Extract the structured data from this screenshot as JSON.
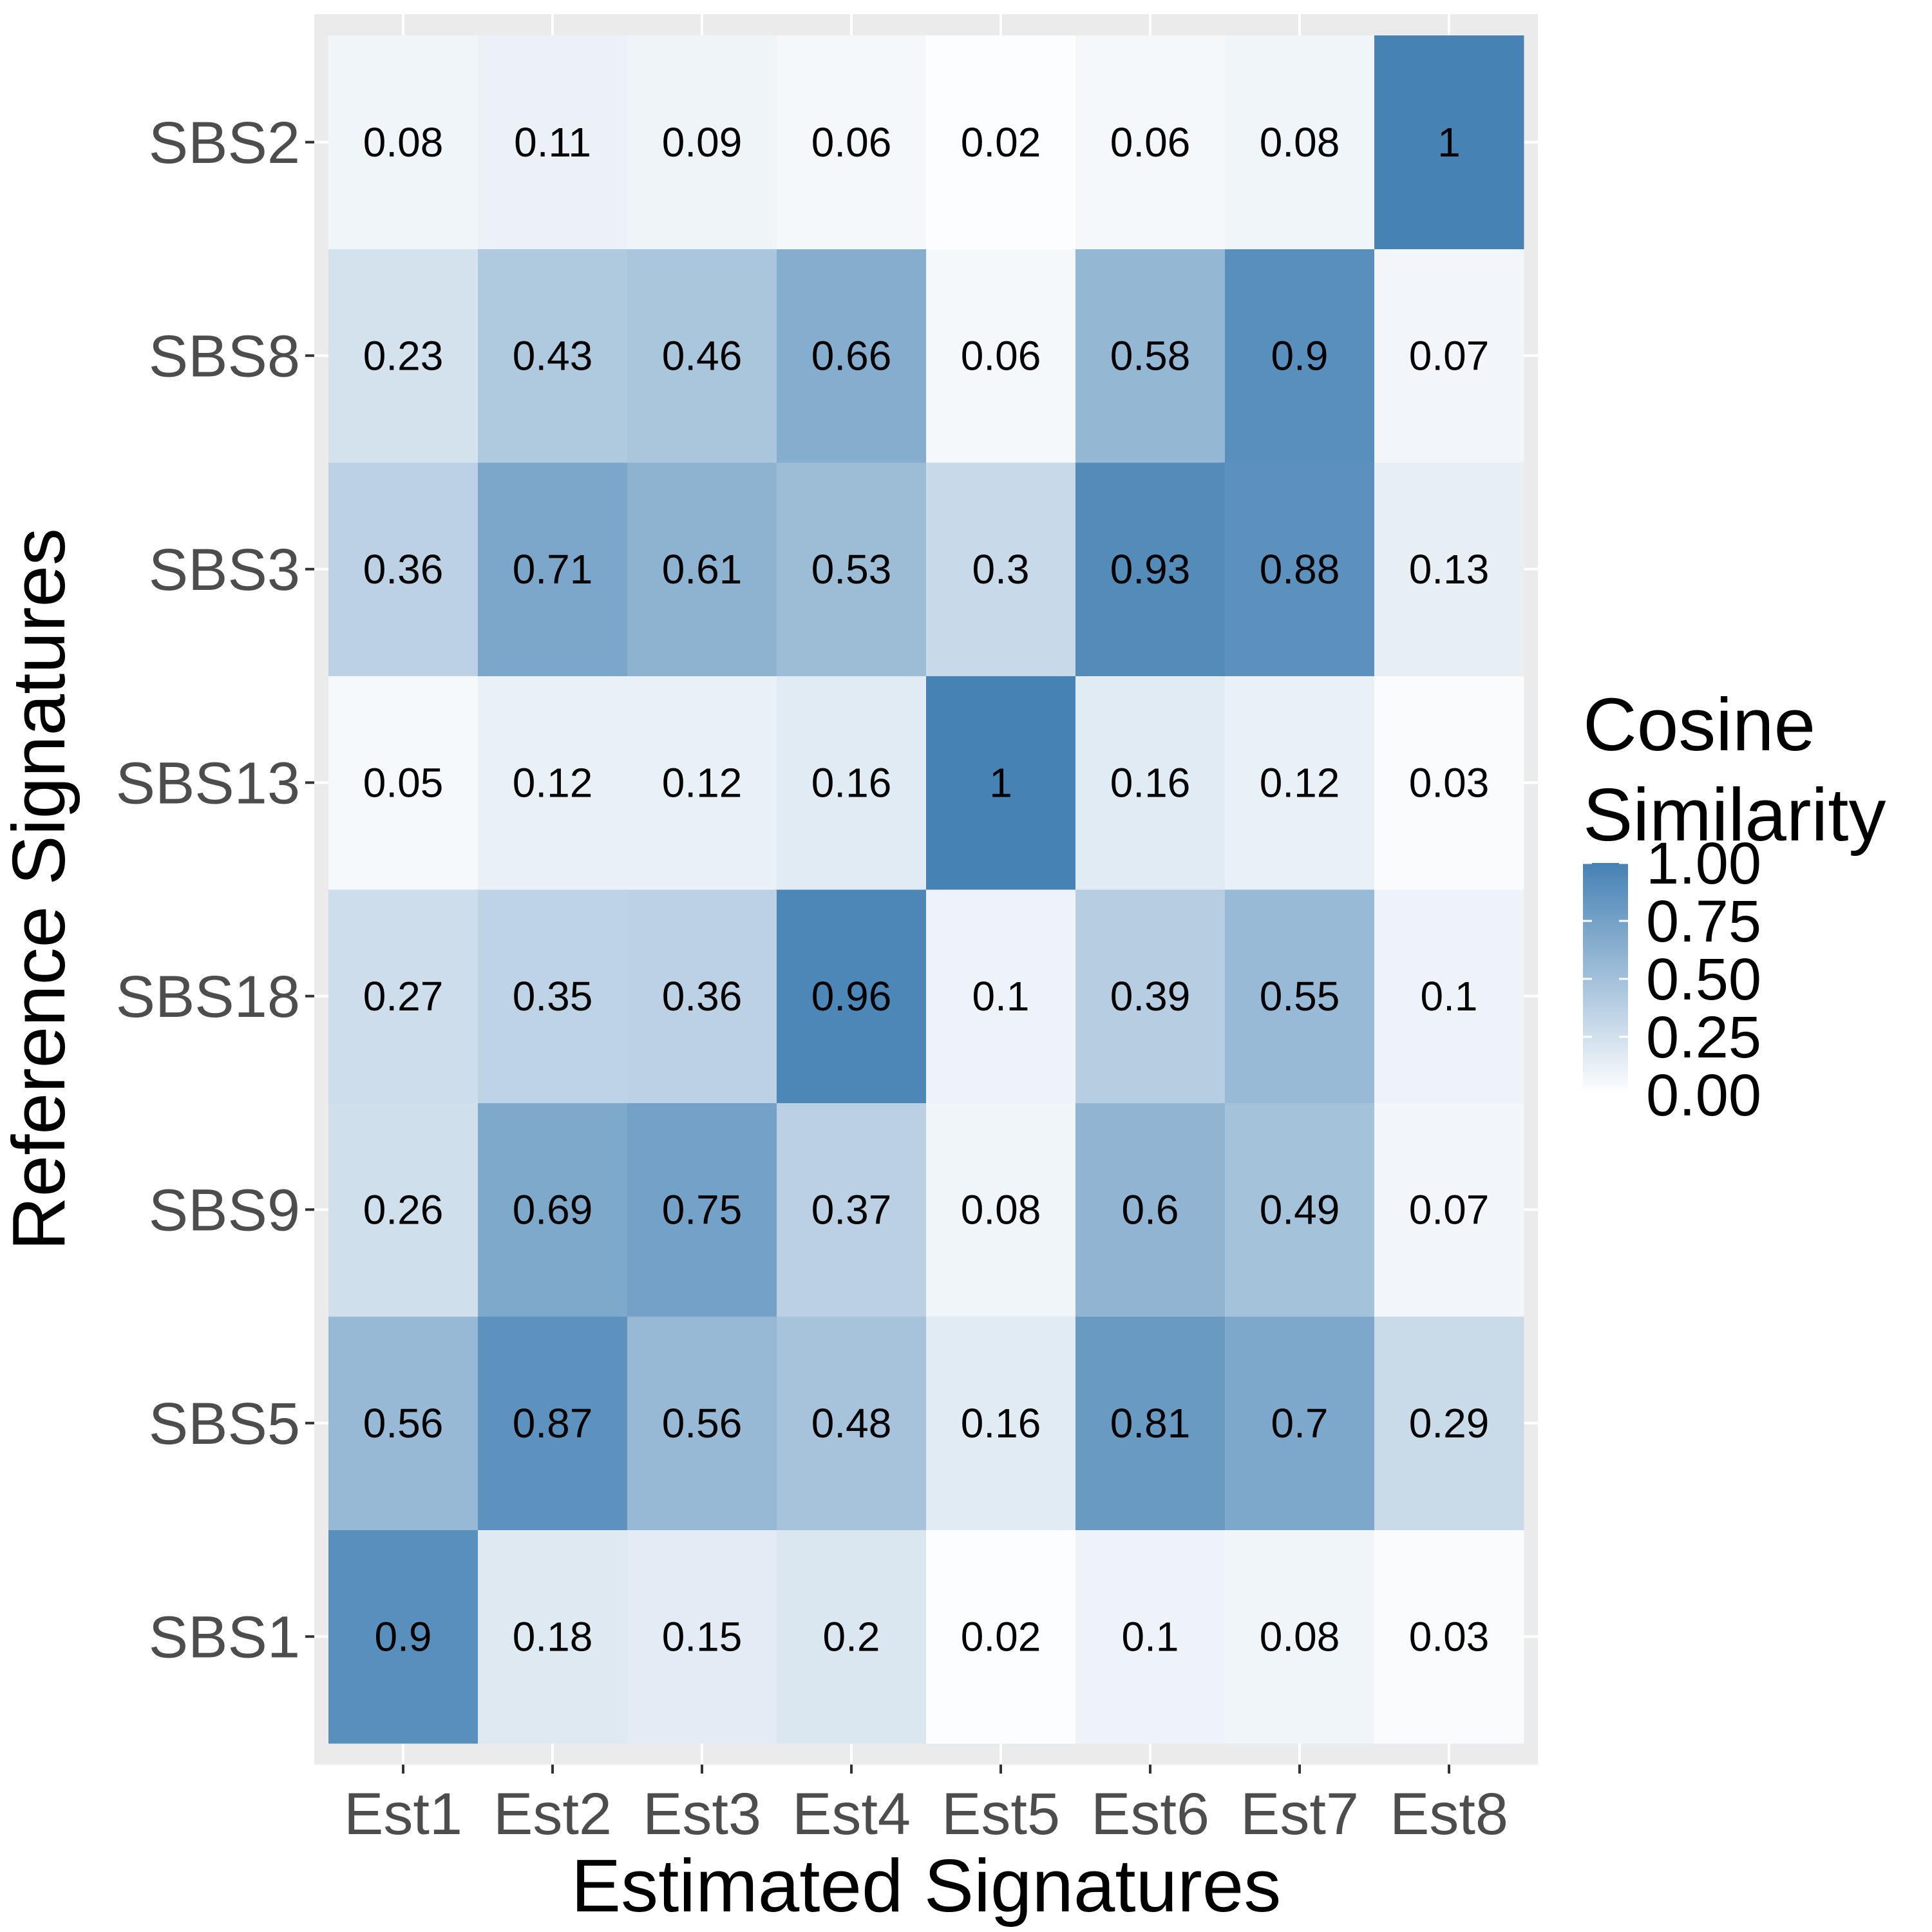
{
  "chart_data": {
    "type": "heatmap",
    "xlabel": "Estimated Signatures",
    "ylabel": "Reference Signatures",
    "x_categories": [
      "Est1",
      "Est2",
      "Est3",
      "Est4",
      "Est5",
      "Est6",
      "Est7",
      "Est8"
    ],
    "y_categories": [
      "SBS1",
      "SBS5",
      "SBS9",
      "SBS18",
      "SBS13",
      "SBS3",
      "SBS8",
      "SBS2"
    ],
    "values": {
      "SBS2": [
        0.08,
        0.11,
        0.09,
        0.06,
        0.02,
        0.06,
        0.08,
        1
      ],
      "SBS8": [
        0.23,
        0.43,
        0.46,
        0.66,
        0.06,
        0.58,
        0.9,
        0.07
      ],
      "SBS3": [
        0.36,
        0.71,
        0.61,
        0.53,
        0.3,
        0.93,
        0.88,
        0.13
      ],
      "SBS13": [
        0.05,
        0.12,
        0.12,
        0.16,
        1,
        0.16,
        0.12,
        0.03
      ],
      "SBS18": [
        0.27,
        0.35,
        0.36,
        0.96,
        0.1,
        0.39,
        0.55,
        0.1
      ],
      "SBS9": [
        0.26,
        0.69,
        0.75,
        0.37,
        0.08,
        0.6,
        0.49,
        0.07
      ],
      "SBS5": [
        0.56,
        0.87,
        0.56,
        0.48,
        0.16,
        0.81,
        0.7,
        0.29
      ],
      "SBS1": [
        0.9,
        0.18,
        0.15,
        0.2,
        0.02,
        0.1,
        0.08,
        0.03
      ]
    },
    "legend": {
      "title_lines": [
        "Cosine",
        "Similarity"
      ],
      "ticks": [
        "1.00",
        "0.75",
        "0.50",
        "0.25",
        "0.00"
      ],
      "range": [
        0,
        1
      ],
      "low_color": "#ffffff",
      "high_color": "#4682b4",
      "placement": "right"
    },
    "panel_background": "#ebebeb",
    "gridline_color": "#ffffff",
    "grid": true
  }
}
